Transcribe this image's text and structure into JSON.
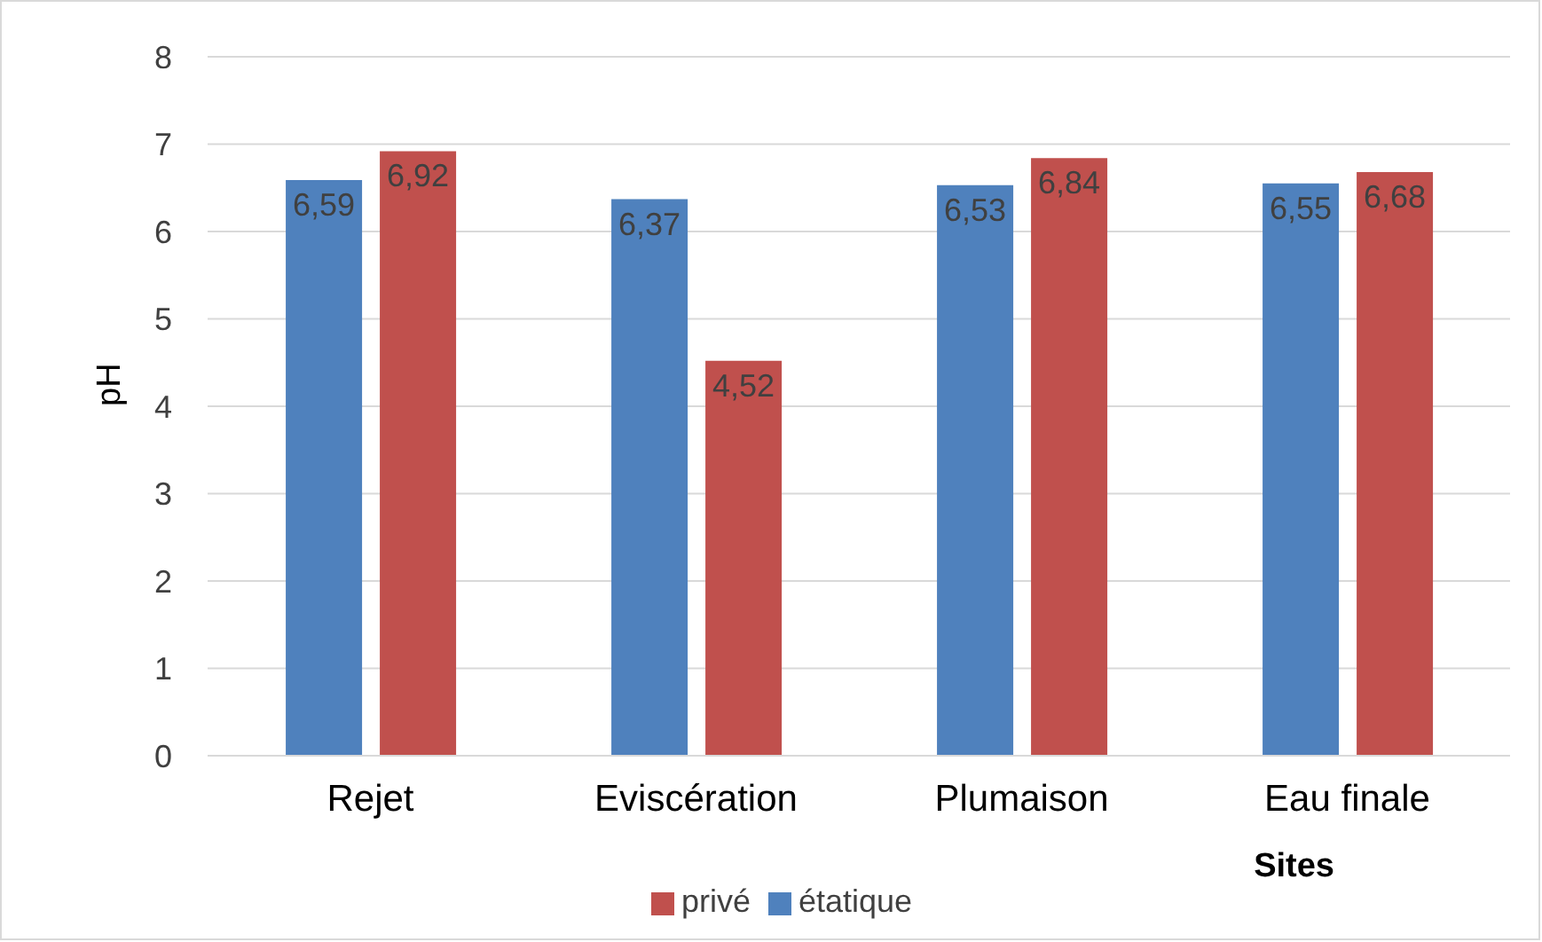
{
  "chart_data": {
    "type": "bar",
    "xlabel": "Sites",
    "ylabel": "pH",
    "categories": [
      "Rejet",
      "Eviscération",
      "Plumaison",
      "Eau finale"
    ],
    "series": [
      {
        "name": "étatique",
        "color": "#4f81bd",
        "values": [
          6.59,
          6.37,
          6.53,
          6.55
        ],
        "value_labels": [
          "6,59",
          "6,37",
          "6,53",
          "6,55"
        ]
      },
      {
        "name": "privé",
        "color": "#c0504d",
        "values": [
          6.92,
          4.52,
          6.84,
          6.68
        ],
        "value_labels": [
          "6,92",
          "4,52",
          "6,84",
          "6,68"
        ]
      }
    ],
    "ylim": [
      0,
      8
    ],
    "yticks": [
      0,
      1,
      2,
      3,
      4,
      5,
      6,
      7,
      8
    ],
    "grid": "y",
    "legend": "bottom"
  }
}
